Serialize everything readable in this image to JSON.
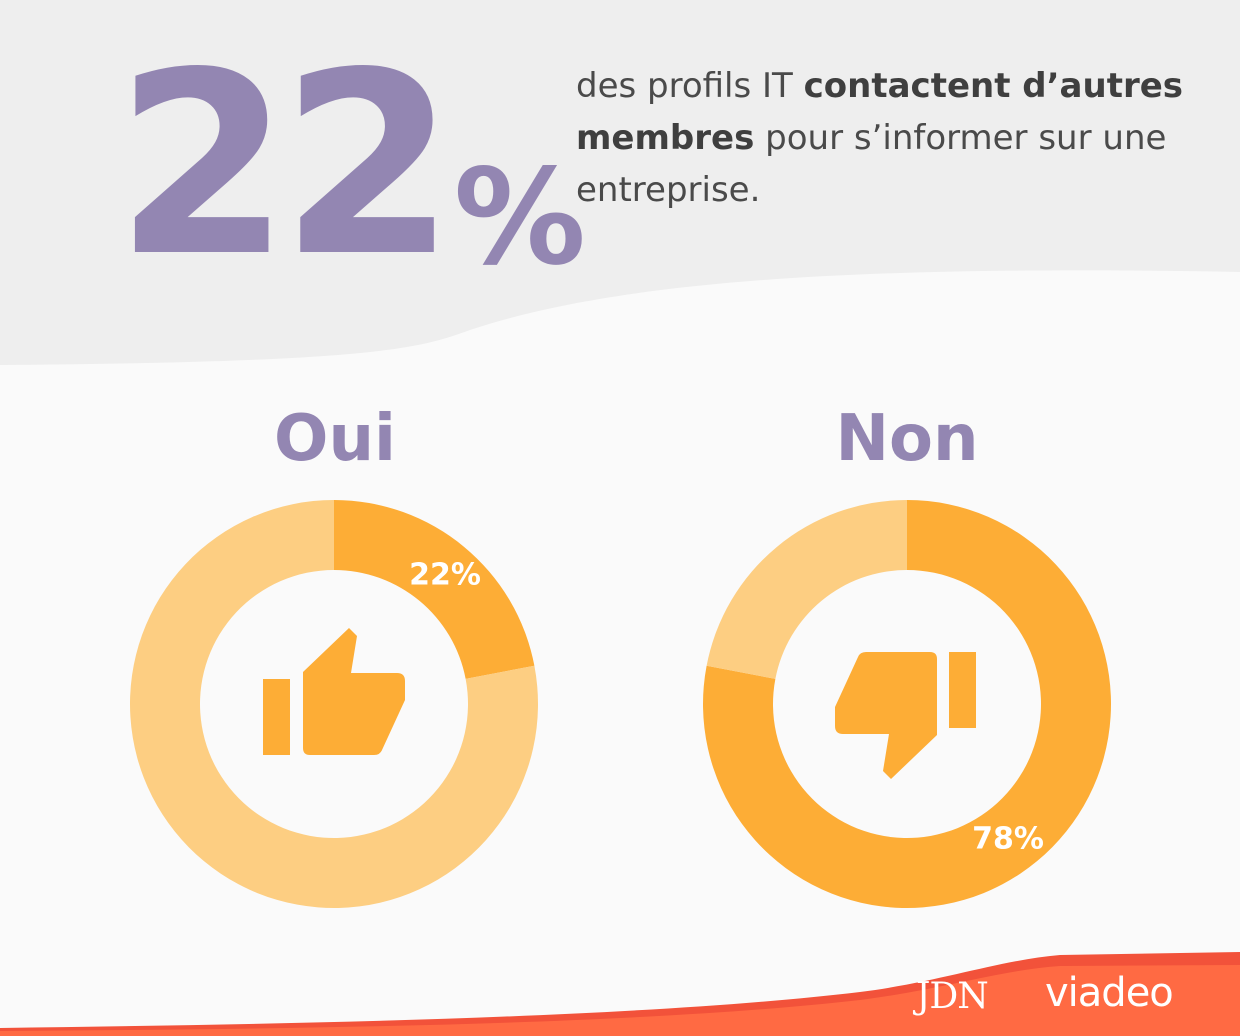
{
  "headline": {
    "number": "22",
    "percent_sign": "%",
    "text_before": "des profils IT ",
    "text_bold_1": "contactent d’autres membres",
    "text_after": " pour s’informer sur une entreprise."
  },
  "chart_data": [
    {
      "type": "pie",
      "variant": "donut",
      "title": "Oui",
      "slices": [
        {
          "label": "22%",
          "value": 22,
          "color": "#fdad36"
        },
        {
          "label": "",
          "value": 78,
          "color": "#fdce82"
        }
      ],
      "highlight_index": 0,
      "icon": "thumbs-up-icon"
    },
    {
      "type": "pie",
      "variant": "donut",
      "title": "Non",
      "slices": [
        {
          "label": "78%",
          "value": 78,
          "color": "#fdad36"
        },
        {
          "label": "",
          "value": 22,
          "color": "#fdce82"
        }
      ],
      "highlight_index": 0,
      "icon": "thumbs-down-icon"
    }
  ],
  "colors": {
    "accent_purple": "#9386b2",
    "header_bg": "#eeeeee",
    "footer_red": "#f2523a"
  },
  "logos": {
    "jdn": "JDN",
    "viadeo": "viadeo"
  }
}
